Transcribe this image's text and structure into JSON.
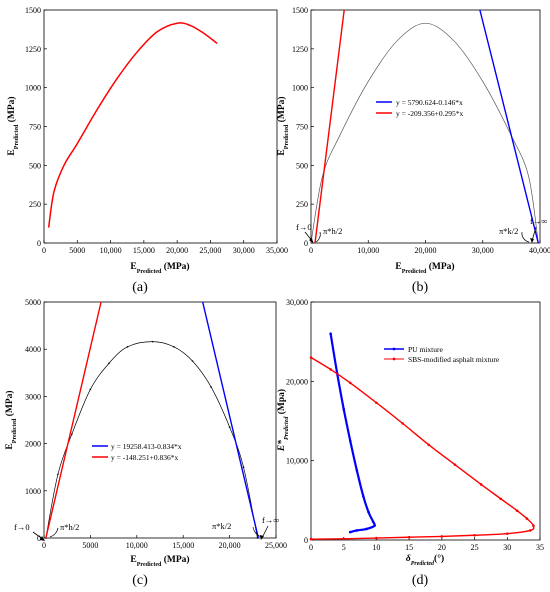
{
  "chart_data": [
    {
      "panel": "(a)",
      "type": "line",
      "xlabel": "E'Predicted (MPa)",
      "ylabel": "E''Predicted (MPa)",
      "xlim": [
        0,
        35000
      ],
      "ylim": [
        0,
        1500
      ],
      "xticks": [
        0,
        5000,
        10000,
        15000,
        20000,
        25000,
        30000,
        35000
      ],
      "xtick_labels": [
        "0",
        "5000",
        "10,000",
        "15,000",
        "20,000",
        "25,000",
        "30,000",
        "35,000"
      ],
      "yticks": [
        0,
        250,
        500,
        750,
        1000,
        1250,
        1500
      ],
      "ytick_labels": [
        "0",
        "250",
        "500",
        "750",
        "1000",
        "1250",
        "1500"
      ],
      "series": [
        {
          "color": "#ff0000",
          "x": [
            700,
            1500,
            3000,
            5000,
            8000,
            11000,
            14000,
            17000,
            20000,
            22000,
            24000,
            26000
          ],
          "y": [
            100,
            330,
            500,
            640,
            860,
            1060,
            1230,
            1360,
            1415,
            1400,
            1350,
            1285
          ]
        }
      ]
    },
    {
      "panel": "(b)",
      "type": "line",
      "xlabel": "E'Predicted (MPa)",
      "ylabel": "E''Predicted (MPa)",
      "xlim": [
        0,
        40000
      ],
      "ylim": [
        0,
        1500
      ],
      "xticks": [
        0,
        10000,
        20000,
        30000,
        40000
      ],
      "xtick_labels": [
        "0",
        "10,000",
        "20,000",
        "30,000",
        "40,000"
      ],
      "yticks": [
        0,
        250,
        500,
        750,
        1000,
        1250,
        1500
      ],
      "ytick_labels": [
        "0",
        "250",
        "500",
        "750",
        "1000",
        "1250",
        "1500"
      ],
      "series": [
        {
          "color": "#555555",
          "x": [
            0,
            2000,
            5000,
            10000,
            15000,
            20000,
            25000,
            30000,
            35000,
            38000,
            39700
          ],
          "y": [
            0,
            430,
            690,
            1040,
            1300,
            1415,
            1300,
            1040,
            690,
            430,
            0
          ]
        },
        {
          "name": "y = 5790.624-0.146*x",
          "color": "#0000ff",
          "x": [
            29500,
            39700
          ],
          "y": [
            1500,
            0
          ]
        },
        {
          "name": "y = -209.356+0.295*x",
          "color": "#ff0000",
          "x": [
            700,
            5800
          ],
          "y": [
            0,
            1500
          ]
        }
      ],
      "annotations": [
        "f→0",
        "π*h/2",
        "π*k/2",
        "f→∞"
      ]
    },
    {
      "panel": "(c)",
      "type": "line",
      "xlabel": "E'Predicted (MPa)",
      "ylabel": "E''Predicted (MPa)",
      "xlim": [
        0,
        25000
      ],
      "ylim": [
        0,
        5000
      ],
      "xticks": [
        0,
        5000,
        10000,
        15000,
        20000,
        25000
      ],
      "xtick_labels": [
        "0",
        "5000",
        "10,000",
        "15,000",
        "20,000",
        "25,000"
      ],
      "yticks": [
        0,
        1000,
        2000,
        3000,
        4000,
        5000
      ],
      "ytick_labels": [
        "0",
        "1000",
        "2000",
        "3000",
        "4000",
        "5000"
      ],
      "series": [
        {
          "color": "#000000",
          "x": [
            200,
            1500,
            3000,
            5000,
            7000,
            9000,
            11700,
            14000,
            16000,
            18000,
            20000,
            21500,
            23000
          ],
          "y": [
            0,
            1350,
            2200,
            3150,
            3700,
            4050,
            4160,
            4050,
            3750,
            3200,
            2350,
            1500,
            0
          ]
        },
        {
          "name": "y = 19258.413-0.834*x",
          "color": "#0000ff",
          "x": [
            17100,
            23100
          ],
          "y": [
            5000,
            0
          ]
        },
        {
          "name": "y = -148.251+0.836*x",
          "color": "#ff0000",
          "x": [
            200,
            6150
          ],
          "y": [
            0,
            5000
          ]
        }
      ],
      "annotations": [
        "f→0",
        "π*h/2",
        "π*k/2",
        "f→∞"
      ]
    },
    {
      "panel": "(d)",
      "type": "line",
      "xlabel": "δPredicted(°)",
      "ylabel": "E*Predicted (Mpa)",
      "xlim": [
        0,
        35
      ],
      "ylim": [
        0,
        30000
      ],
      "xticks": [
        0,
        5,
        10,
        15,
        20,
        25,
        30,
        35
      ],
      "xtick_labels": [
        "0",
        "5",
        "10",
        "15",
        "20",
        "25",
        "30",
        "35"
      ],
      "yticks": [
        0,
        10000,
        20000,
        30000
      ],
      "ytick_labels": [
        "0",
        "10,000",
        "20,000",
        "30,000"
      ],
      "series": [
        {
          "name": "PU mixture",
          "color": "#0000ff",
          "x": [
            3,
            4,
            5,
            6,
            7,
            8,
            8.8,
            9.5,
            9.7,
            8.5,
            7,
            6
          ],
          "y": [
            26000,
            21000,
            16500,
            12500,
            8800,
            5500,
            3500,
            2300,
            1800,
            1400,
            1200,
            1000
          ]
        },
        {
          "name": "SBS-modified asphalt mixture",
          "color": "#ff0000",
          "x": [
            0,
            3,
            6,
            10,
            14,
            18,
            22,
            26,
            29,
            31.5,
            33,
            34,
            33.5,
            30,
            25,
            20,
            15,
            10,
            5,
            0
          ],
          "y": [
            23000,
            21500,
            19800,
            17300,
            14700,
            12000,
            9500,
            7000,
            5200,
            3700,
            2700,
            1800,
            1200,
            800,
            600,
            450,
            350,
            250,
            150,
            100
          ]
        }
      ]
    }
  ],
  "panel_labels": [
    "(a)",
    "(b)",
    "(c)",
    "(d)"
  ],
  "legends": {
    "b": [
      "y = 5790.624-0.146*x",
      "y = -209.356+0.295*x"
    ],
    "c": [
      "y = 19258.413-0.834*x",
      "y = -148.251+0.836*x"
    ],
    "d": [
      "PU mixture",
      "SBS-modified asphalt mixture"
    ]
  },
  "annotations": {
    "f0": "f→0",
    "finf": "f→∞",
    "pih": "π*h/2",
    "pik": "π*k/2"
  },
  "axis_labels": {
    "e_prime": "E",
    "predicted": "Predicted",
    "mpa": " (MPa)",
    "e_star_pred": "E*",
    "mpa_d": " (Mpa)",
    "delta": "δ",
    "degree": "(°)"
  }
}
